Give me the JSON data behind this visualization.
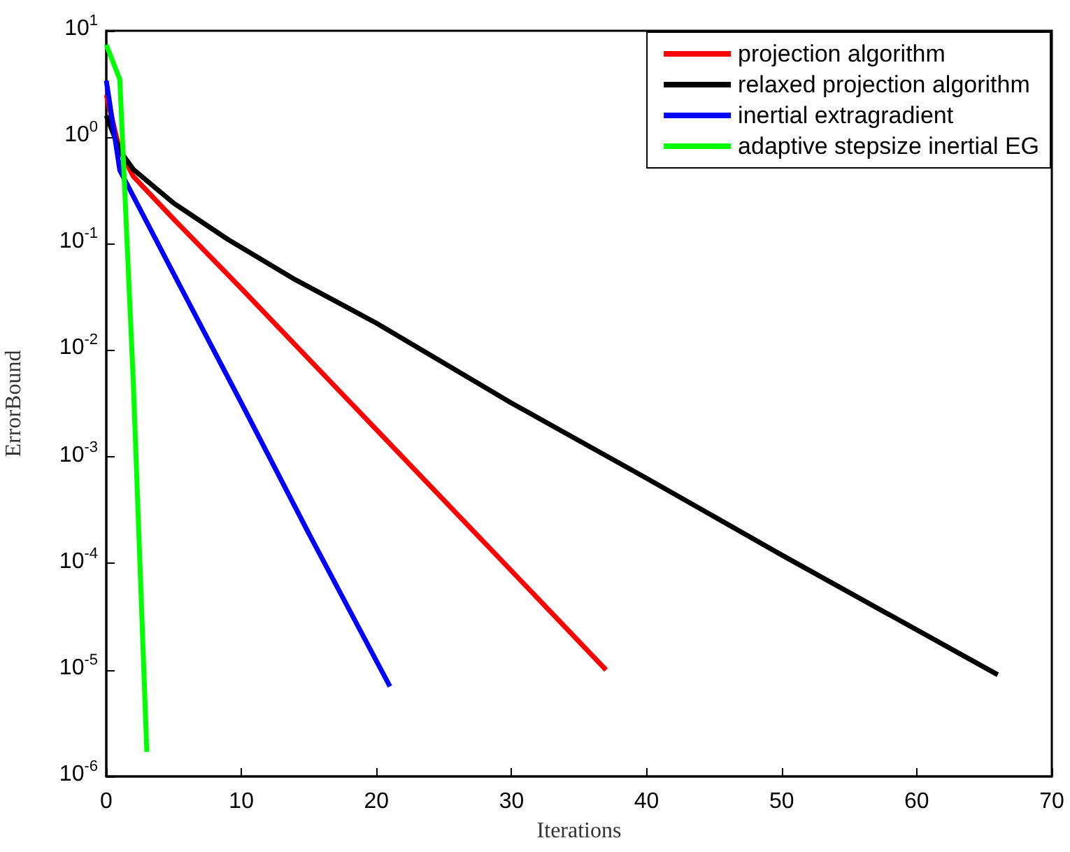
{
  "chart_data": {
    "type": "line",
    "xlabel": "Iterations",
    "ylabel": "ErrorBound",
    "xlim": [
      0,
      70
    ],
    "xticks": [
      0,
      10,
      20,
      30,
      40,
      50,
      60,
      70
    ],
    "ylim": [
      1e-06,
      10
    ],
    "log": "y",
    "yticks": [
      {
        "value": 1e-06,
        "label": "10$^{-6}$"
      },
      {
        "value": 1e-05,
        "label": "10$^{-5}$"
      },
      {
        "value": 0.0001,
        "label": "10$^{-4}$"
      },
      {
        "value": 0.001,
        "label": "10$^{-3}$"
      },
      {
        "value": 0.01,
        "label": "10$^{-2}$"
      },
      {
        "value": 0.1,
        "label": "10$^{-1}$"
      },
      {
        "value": 1,
        "label": "10$^{0}$"
      },
      {
        "value": 10,
        "label": "10$^{1}$"
      }
    ],
    "grid": false,
    "legend": "top right",
    "marker": "none",
    "line_style": "solid",
    "series": [
      {
        "name": "projection algorithm",
        "color": "#ff0000",
        "x": [
          0,
          1,
          2,
          5,
          10,
          20,
          30,
          37
        ],
        "values": [
          2.5,
          0.75,
          0.43,
          0.17,
          0.038,
          0.0018,
          8.5e-05,
          1e-05
        ]
      },
      {
        "name": "relaxed projection algorithm",
        "color": "#000000",
        "x": [
          0,
          1,
          2,
          5,
          9,
          14,
          20,
          30,
          40,
          50,
          66
        ],
        "values": [
          1.6,
          0.75,
          0.5,
          0.24,
          0.11,
          0.046,
          0.018,
          0.0032,
          0.00063,
          0.00012,
          9e-06
        ]
      },
      {
        "name": "inertial extragradient",
        "color": "#0000ff",
        "x": [
          0,
          1,
          5,
          10,
          15,
          21
        ],
        "values": [
          3.4,
          0.49,
          0.052,
          0.0032,
          0.00019,
          7e-06
        ]
      },
      {
        "name": "adaptive stepsize inertial EG",
        "color": "#00ff00",
        "x": [
          0,
          1,
          2,
          3
        ],
        "values": [
          7.4,
          3.5,
          0.005,
          1.7e-06
        ]
      }
    ]
  }
}
